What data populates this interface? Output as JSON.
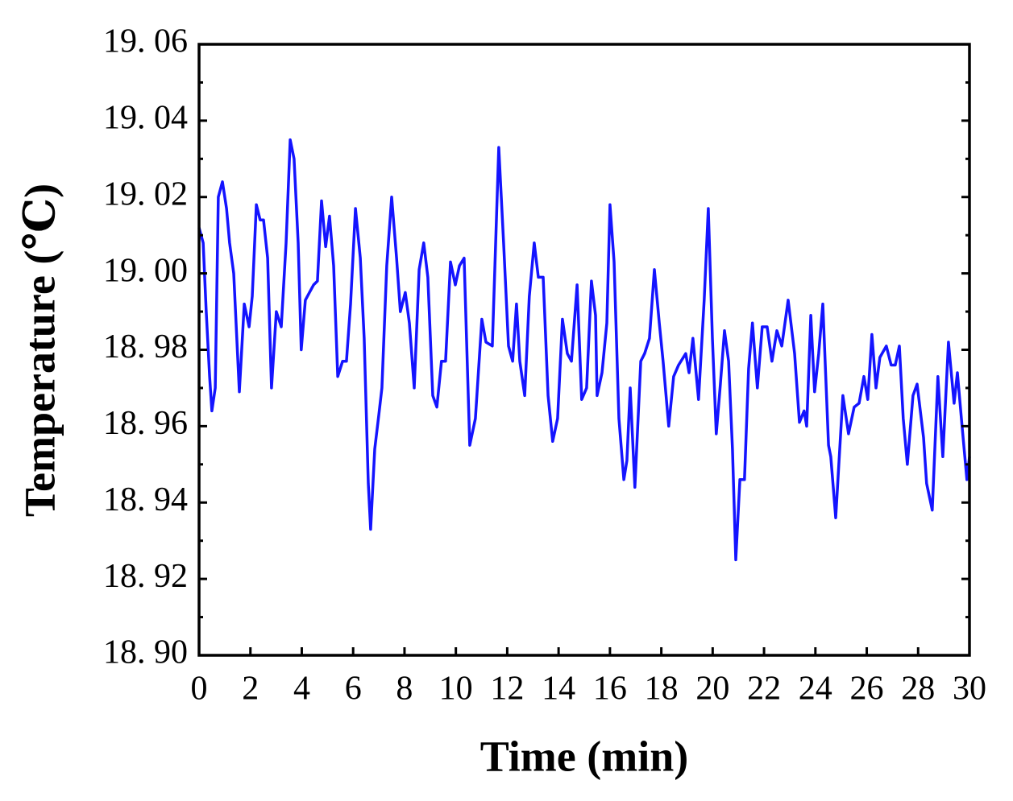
{
  "chart_data": {
    "type": "line",
    "xlabel": "Time (min)",
    "ylabel": "Temperature (℃)",
    "x": [
      0,
      0.16,
      0.28,
      0.41,
      0.5,
      0.63,
      0.75,
      0.91,
      1.07,
      1.19,
      1.35,
      1.57,
      1.76,
      1.95,
      2.07,
      2.23,
      2.38,
      2.51,
      2.67,
      2.82,
      3.01,
      3.2,
      3.39,
      3.55,
      3.7,
      3.86,
      3.98,
      4.14,
      4.3,
      4.46,
      4.61,
      4.77,
      4.93,
      5.08,
      5.24,
      5.4,
      5.59,
      5.74,
      5.9,
      6.09,
      6.28,
      6.43,
      6.59,
      6.68,
      6.84,
      7,
      7.12,
      7.31,
      7.5,
      7.69,
      7.84,
      8.03,
      8.19,
      8.38,
      8.57,
      8.75,
      8.91,
      9.1,
      9.26,
      9.44,
      9.6,
      9.79,
      9.98,
      10.14,
      10.32,
      10.54,
      10.76,
      11.01,
      11.17,
      11.42,
      11.67,
      11.86,
      12.05,
      12.21,
      12.36,
      12.49,
      12.68,
      12.86,
      13.05,
      13.21,
      13.4,
      13.59,
      13.77,
      13.96,
      14.15,
      14.34,
      14.5,
      14.72,
      14.9,
      15.09,
      15.28,
      15.44,
      15.5,
      15.69,
      15.88,
      16,
      16.16,
      16.35,
      16.54,
      16.66,
      16.79,
      16.97,
      17.2,
      17.35,
      17.54,
      17.73,
      17.92,
      18.07,
      18.29,
      18.48,
      18.67,
      18.95,
      19.08,
      19.23,
      19.45,
      19.67,
      19.83,
      19.99,
      20.14,
      20.3,
      20.46,
      20.62,
      20.77,
      20.9,
      21.06,
      21.24,
      21.4,
      21.55,
      21.74,
      21.93,
      22.12,
      22.31,
      22.5,
      22.69,
      22.94,
      23.19,
      23.38,
      23.56,
      23.66,
      23.82,
      23.97,
      24.13,
      24.29,
      24.51,
      24.6,
      24.79,
      25.07,
      25.29,
      25.51,
      25.7,
      25.89,
      26.04,
      26.2,
      26.36,
      26.51,
      26.76,
      26.95,
      27.11,
      27.27,
      27.42,
      27.58,
      27.8,
      27.96,
      28.21,
      28.33,
      28.55,
      28.77,
      28.96,
      29.18,
      29.4,
      29.53,
      29.71,
      29.9,
      30
    ],
    "series": [
      {
        "name": "Temperature",
        "color": "#1414ff",
        "values": [
          19.012,
          19.008,
          18.99,
          18.973,
          18.964,
          18.97,
          19.02,
          19.024,
          19.017,
          19.008,
          19.0,
          18.969,
          18.992,
          18.986,
          18.994,
          19.018,
          19.014,
          19.014,
          19.004,
          18.97,
          18.99,
          18.986,
          19.008,
          19.035,
          19.03,
          19.008,
          18.98,
          18.993,
          18.995,
          18.997,
          18.998,
          19.019,
          19.007,
          19.015,
          19.002,
          18.973,
          18.977,
          18.977,
          18.992,
          19.017,
          19.004,
          18.983,
          18.945,
          18.933,
          18.954,
          18.963,
          18.97,
          19.002,
          19.02,
          19.004,
          18.99,
          18.995,
          18.987,
          18.97,
          19.001,
          19.008,
          18.999,
          18.968,
          18.965,
          18.977,
          18.977,
          19.003,
          18.997,
          19.002,
          19.004,
          18.955,
          18.962,
          18.988,
          18.982,
          18.981,
          19.033,
          19.008,
          18.981,
          18.977,
          18.992,
          18.977,
          18.968,
          18.994,
          19.008,
          18.999,
          18.999,
          18.968,
          18.956,
          18.962,
          18.988,
          18.979,
          18.977,
          18.997,
          18.967,
          18.97,
          18.998,
          18.989,
          18.968,
          18.974,
          18.987,
          19.018,
          19.003,
          18.962,
          18.946,
          18.951,
          18.97,
          18.944,
          18.977,
          18.979,
          18.983,
          19.001,
          18.987,
          18.977,
          18.96,
          18.973,
          18.976,
          18.979,
          18.974,
          18.983,
          18.967,
          18.993,
          19.017,
          18.983,
          18.958,
          18.971,
          18.985,
          18.977,
          18.954,
          18.925,
          18.946,
          18.946,
          18.975,
          18.987,
          18.97,
          18.986,
          18.986,
          18.977,
          18.985,
          18.981,
          18.993,
          18.979,
          18.961,
          18.964,
          18.96,
          18.989,
          18.969,
          18.979,
          18.992,
          18.955,
          18.952,
          18.936,
          18.968,
          18.958,
          18.965,
          18.966,
          18.973,
          18.967,
          18.984,
          18.97,
          18.978,
          18.981,
          18.976,
          18.976,
          18.981,
          18.962,
          18.95,
          18.968,
          18.971,
          18.957,
          18.945,
          18.938,
          18.973,
          18.952,
          18.982,
          18.966,
          18.974,
          18.96,
          18.946,
          18.952
        ]
      }
    ],
    "xlim": [
      0,
      30
    ],
    "ylim": [
      18.9,
      19.06
    ],
    "xticks": [
      0,
      2,
      4,
      6,
      8,
      10,
      12,
      14,
      16,
      18,
      20,
      22,
      24,
      26,
      28,
      30
    ],
    "yticks": [
      {
        "value": 18.9,
        "label": "18. 90"
      },
      {
        "value": 18.92,
        "label": "18. 92"
      },
      {
        "value": 18.94,
        "label": "18. 94"
      },
      {
        "value": 18.96,
        "label": "18. 96"
      },
      {
        "value": 18.98,
        "label": "18. 98"
      },
      {
        "value": 19.0,
        "label": "19. 00"
      },
      {
        "value": 19.02,
        "label": "19. 02"
      },
      {
        "value": 19.04,
        "label": "19. 04"
      },
      {
        "value": 19.06,
        "label": "19. 06"
      }
    ],
    "grid": false
  }
}
